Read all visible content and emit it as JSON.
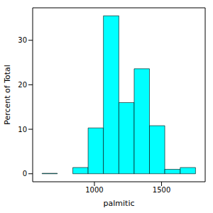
{
  "chart_data": {
    "type": "histogram",
    "x_label": "palmitic",
    "y_label": "Percent of Total",
    "bins": [
      610,
      724,
      839,
      953,
      1067,
      1182,
      1296,
      1410,
      1524,
      1639,
      1753
    ],
    "values": [
      0.1,
      0,
      1.4,
      10.3,
      35.5,
      16.0,
      23.6,
      10.8,
      1.0,
      1.4
    ],
    "color": "#00ffff",
    "xlim": [
      540,
      1825
    ],
    "xticks": [
      1000,
      1500
    ],
    "ylim": [
      -1.8,
      37.3
    ],
    "yticks": [
      0,
      10,
      20,
      30
    ]
  }
}
